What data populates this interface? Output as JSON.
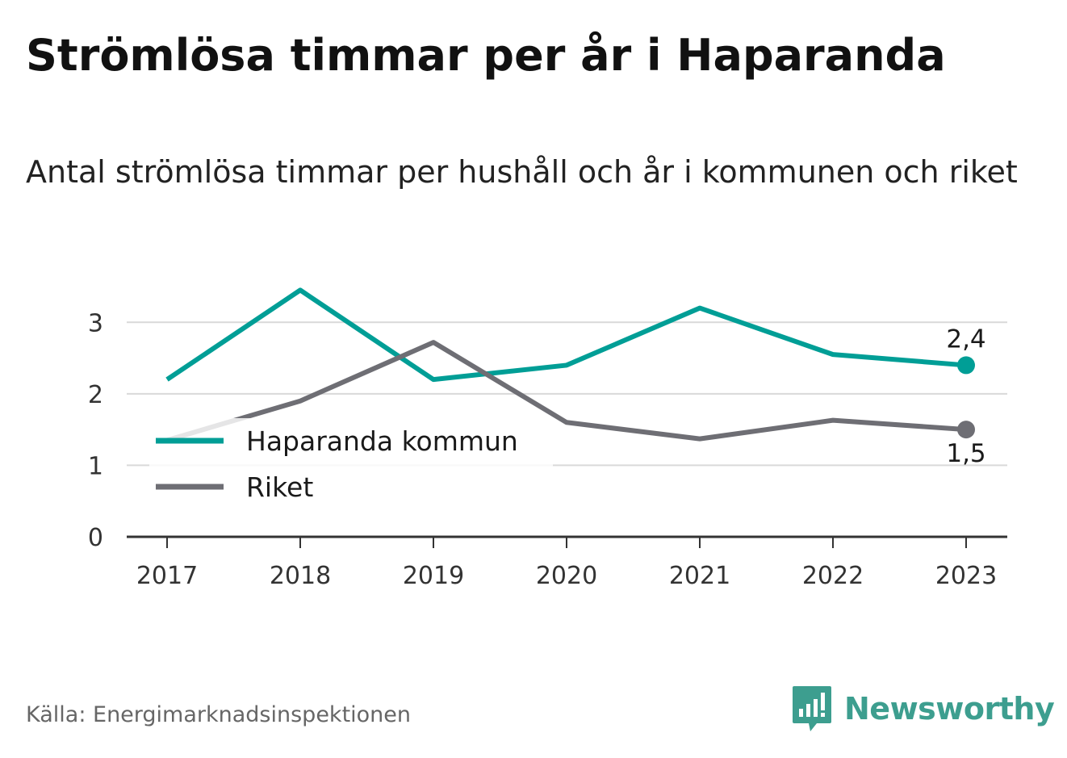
{
  "title": "Strömlösa timmar per år i Haparanda",
  "subtitle": "Antal strömlösa timmar per hushåll och år i kommunen och riket",
  "source": "Källa: Energimarknadsinspektionen",
  "brand": {
    "name": "Newsworthy",
    "icon": "newsworthy-logo-icon",
    "color": "#3d9e8f"
  },
  "chart_data": {
    "type": "line",
    "x": [
      "2017",
      "2018",
      "2019",
      "2020",
      "2021",
      "2022",
      "2023"
    ],
    "ylim": [
      0,
      3.5
    ],
    "yticks": [
      0,
      1,
      2,
      3
    ],
    "grid": true,
    "legend_position": "center-left",
    "series": [
      {
        "name": "Haparanda kommun",
        "color": "#009e96",
        "values": [
          2.2,
          3.45,
          2.2,
          2.4,
          3.2,
          2.55,
          2.4
        ],
        "end_label": "2,4"
      },
      {
        "name": "Riket",
        "color": "#6e6e74",
        "values": [
          1.35,
          1.9,
          2.72,
          1.6,
          1.37,
          1.63,
          1.5
        ],
        "end_label": "1,5"
      }
    ]
  }
}
